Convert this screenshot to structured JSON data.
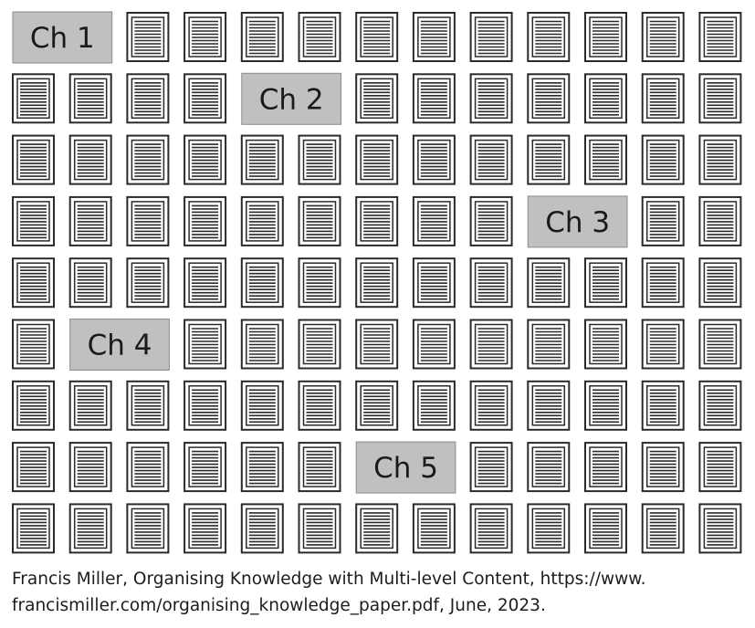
{
  "diagram": {
    "rows": 9,
    "cols": 13,
    "chapters": [
      {
        "label": "Ch 1",
        "row": 1,
        "col": 1,
        "span": 2
      },
      {
        "label": "Ch 2",
        "row": 2,
        "col": 5,
        "span": 2
      },
      {
        "label": "Ch 3",
        "row": 4,
        "col": 10,
        "span": 2
      },
      {
        "label": "Ch 4",
        "row": 6,
        "col": 2,
        "span": 2
      },
      {
        "label": "Ch 5",
        "row": 8,
        "col": 7,
        "span": 2
      }
    ],
    "colors": {
      "chapter_fill": "#c0c0c0",
      "page_stroke": "#2a2a2a",
      "text": "#1a1a1a"
    }
  },
  "caption": {
    "line1": "Francis Miller, Organising Knowledge with Multi-level Content, https://www.",
    "line2": "francismiller.com/organising_knowledge_paper.pdf, June, 2023."
  }
}
